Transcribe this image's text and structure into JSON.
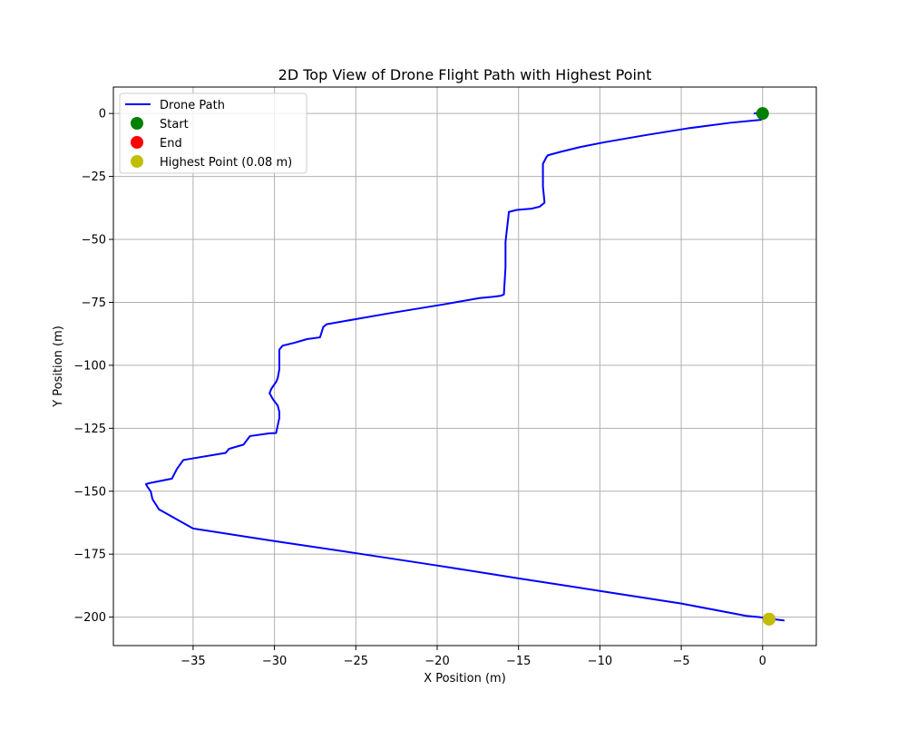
{
  "chart_data": {
    "type": "line",
    "title": "2D Top View of Drone Flight Path with Highest Point",
    "xlabel": "X Position (m)",
    "ylabel": "Y Position (m)",
    "xlim": [
      -39.9,
      3.3
    ],
    "ylim": [
      -211.3,
      10.5
    ],
    "x_ticks": [
      -35,
      -30,
      -25,
      -20,
      -15,
      -10,
      -5,
      0
    ],
    "y_ticks": [
      0,
      -25,
      -50,
      -75,
      -100,
      -125,
      -150,
      -175,
      -200
    ],
    "x_tick_labels": [
      "−35",
      "−30",
      "−25",
      "−20",
      "−15",
      "−10",
      "−5",
      "0"
    ],
    "y_tick_labels": [
      "0",
      "−25",
      "−50",
      "−75",
      "−100",
      "−125",
      "−150",
      "−175",
      "−200"
    ],
    "grid": true,
    "legend_position": "top-left",
    "colors": {
      "path": "#0000ff",
      "start": "#008000",
      "end": "#ff0000",
      "highest": "#bfbf00",
      "grid": "#b0b0b0"
    },
    "series": [
      {
        "name": "Drone Path",
        "kind": "line",
        "x": [
          -0.5,
          0.0,
          -0.1,
          -0.2,
          -0.1,
          -2.0,
          -4.6,
          -7.2,
          -9.7,
          -11.2,
          -12.4,
          -13.2,
          -13.3,
          -13.5,
          -13.5,
          -13.5,
          -13.4,
          -13.7,
          -14.2,
          -15.1,
          -15.6,
          -15.6,
          -15.7,
          -15.8,
          -15.8,
          -15.9,
          -16.1,
          -16.6,
          -17.4,
          -19.6,
          -23.0,
          -26.8,
          -27.0,
          -27.2,
          -28.0,
          -28.8,
          -29.5,
          -29.7,
          -29.7,
          -29.7,
          -29.8,
          -29.9,
          -30.2,
          -30.3,
          -30.1,
          -29.8,
          -29.7,
          -29.7,
          -29.9,
          -30.3,
          -31.5,
          -31.6,
          -31.9,
          -32.6,
          -32.8,
          -33.0,
          -35.6,
          -35.7,
          -36.0,
          -36.3,
          -37.7,
          -37.9,
          -37.8,
          -37.6,
          -37.5,
          -37.1,
          -35.0,
          -30.0,
          -25.0,
          -20.0,
          -15.0,
          -10.0,
          -5.0,
          -1.0,
          -0.2,
          0.5,
          1.3
        ],
        "y": [
          0.0,
          0.1,
          -0.5,
          -1.0,
          -2.5,
          -3.7,
          -5.9,
          -8.6,
          -11.4,
          -13.3,
          -15.2,
          -16.6,
          -17.5,
          -20.0,
          -24.6,
          -29.0,
          -35.4,
          -37.0,
          -37.8,
          -38.3,
          -39.1,
          -39.6,
          -45.3,
          -51.0,
          -61.0,
          -71.9,
          -72.4,
          -72.8,
          -73.3,
          -75.8,
          -79.4,
          -83.7,
          -84.8,
          -88.9,
          -89.6,
          -91.1,
          -92.2,
          -93.8,
          -96.0,
          -101.6,
          -105.1,
          -106.6,
          -109.4,
          -111.1,
          -113.4,
          -116.0,
          -118.5,
          -120.9,
          -126.9,
          -127.0,
          -128.1,
          -128.9,
          -131.5,
          -132.8,
          -133.2,
          -134.8,
          -137.6,
          -138.5,
          -141.2,
          -145.0,
          -146.8,
          -147.2,
          -148.3,
          -150.1,
          -153.1,
          -157.2,
          -164.8,
          -169.8,
          -174.6,
          -179.5,
          -184.6,
          -189.6,
          -194.6,
          -199.5,
          -200.0,
          -200.7,
          -201.3
        ]
      },
      {
        "name": "Start",
        "kind": "point",
        "x": 0.0,
        "y": 0.0
      },
      {
        "name": "End",
        "kind": "point",
        "x": 0.4,
        "y": -200.8
      },
      {
        "name": "Highest Point (0.08 m)",
        "kind": "point",
        "x": 0.4,
        "y": -200.8
      }
    ]
  }
}
